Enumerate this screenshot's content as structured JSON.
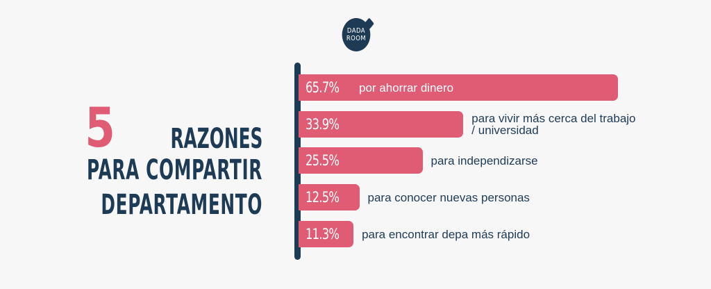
{
  "logo": {
    "line1": "DADA",
    "line2": "ROOM"
  },
  "title": {
    "number": "5",
    "line1": "RAZONES",
    "line2": "PARA COMPARTIR",
    "line3": "DEPARTAMENTO"
  },
  "colors": {
    "bar": "#e05c74",
    "text": "#1e3b56",
    "background": "#f7f7f7"
  },
  "chart_data": {
    "type": "bar",
    "orientation": "horizontal",
    "title": "5 razones para compartir departamento",
    "categories": [
      "por ahorrar dinero",
      "para vivir más cerca del trabajo / universidad",
      "para independizarse",
      "para conocer nuevas personas",
      "para encontrar depa más rápido"
    ],
    "values": [
      65.7,
      33.9,
      25.5,
      12.5,
      11.3
    ],
    "value_labels": [
      "65.7%",
      "33.9%",
      "25.5%",
      "12.5%",
      "11.3%"
    ],
    "unit": "%",
    "xlim": [
      0,
      100
    ],
    "grid": false
  }
}
